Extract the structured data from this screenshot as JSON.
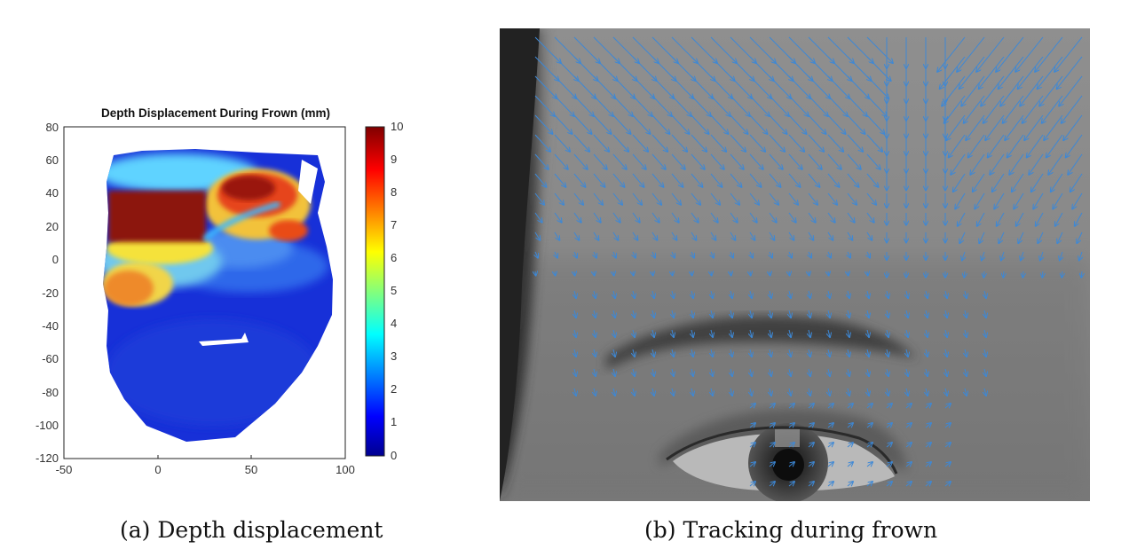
{
  "figure_a": {
    "caption": "(a) Depth displacement",
    "chart_data": {
      "type": "heatmap",
      "title": "Depth Displacement During Frown (mm)",
      "xlabel": "",
      "ylabel": "",
      "xlim": [
        -50,
        100
      ],
      "ylim": [
        -120,
        80
      ],
      "x_ticks": [
        "-50",
        "0",
        "50",
        "100"
      ],
      "y_ticks": [
        "80",
        "60",
        "40",
        "20",
        "0",
        "-20",
        "-40",
        "-60",
        "-80",
        "-100",
        "-120"
      ],
      "colorbar": {
        "range": [
          0,
          10
        ],
        "ticks": [
          "10",
          "9",
          "8",
          "7",
          "6",
          "5",
          "4",
          "3",
          "2",
          "1",
          "0"
        ],
        "colormap": "jet"
      },
      "colors": {
        "low": "#1a2ed6",
        "mid_low": "#2f6ff0",
        "mid": "#4fd0ff",
        "mid_high": "#f5e21a",
        "high": "#ee4b12",
        "max": "#8c1208"
      }
    }
  },
  "figure_b": {
    "caption": "(b) Tracking during frown",
    "arrow_color": "#3d88d6"
  }
}
